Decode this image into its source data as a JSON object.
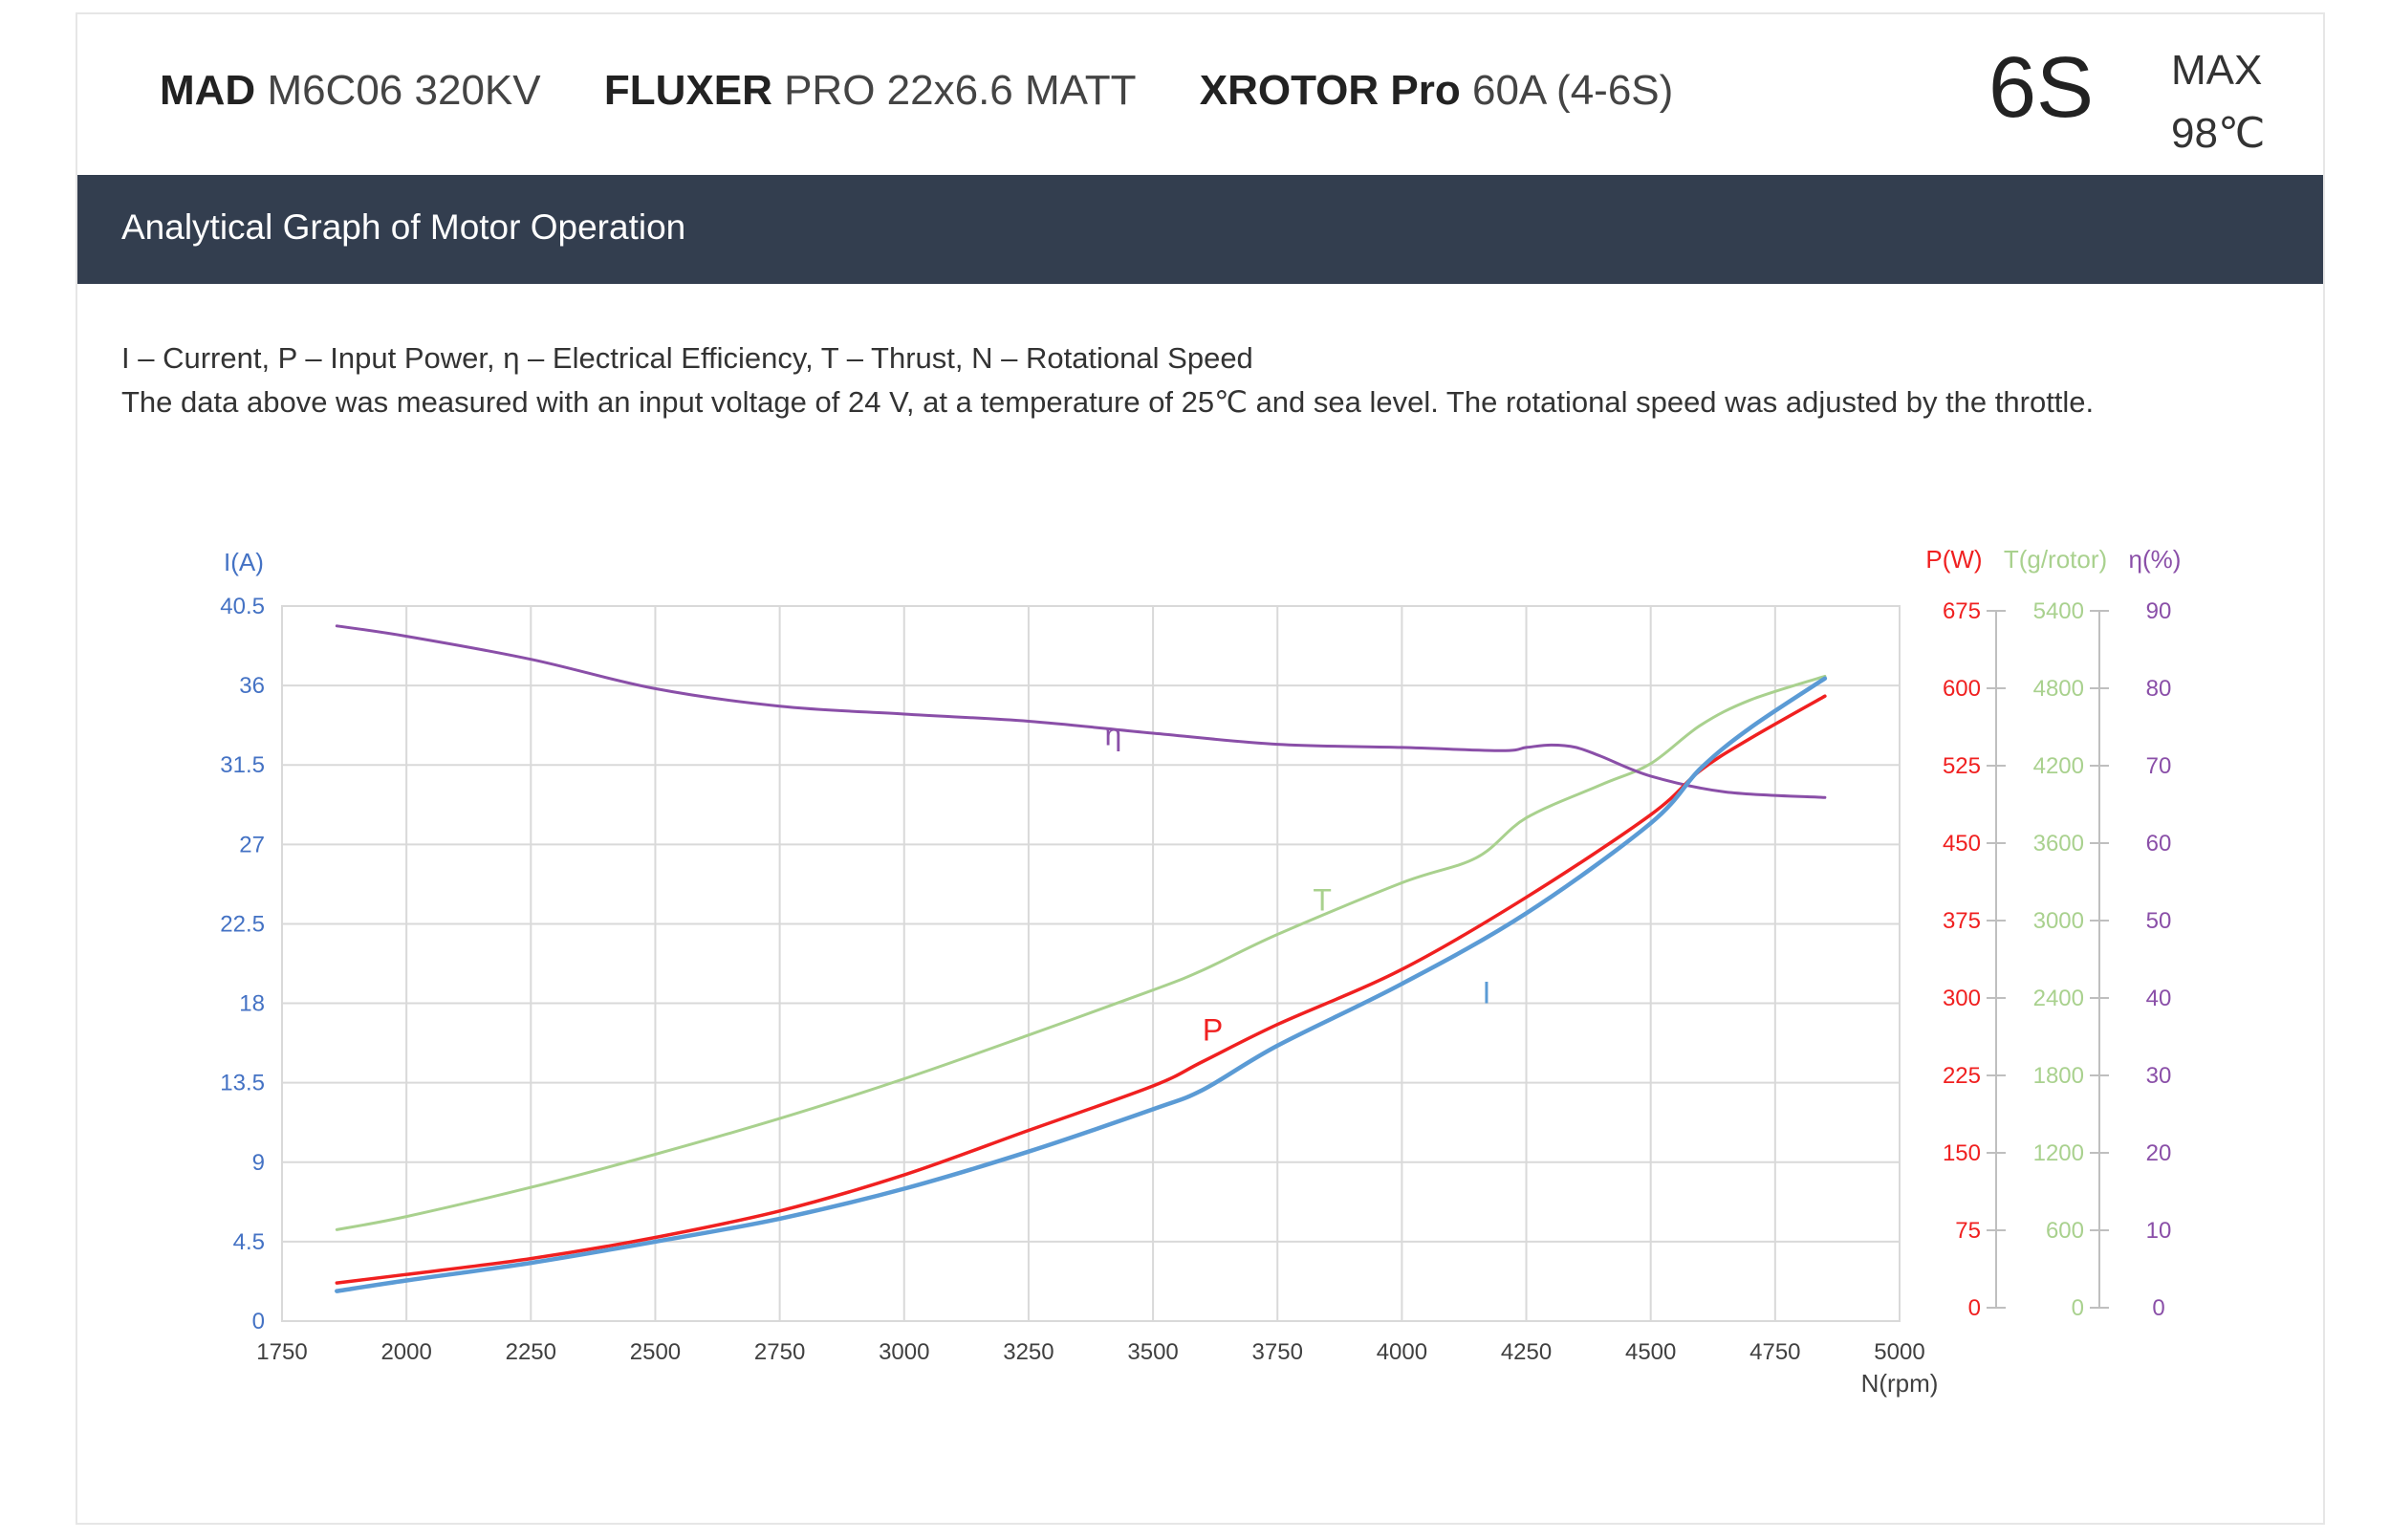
{
  "header": {
    "specs": [
      {
        "brand": "MAD",
        "model": "M6C06 320KV"
      },
      {
        "brand": "FLUXER",
        "model": "PRO 22x6.6 MATT"
      },
      {
        "brand": "XROTOR Pro",
        "model": "60A (4-6S)"
      }
    ],
    "cells": "6S",
    "max_label": "MAX",
    "max_temp": "98℃"
  },
  "banner": {
    "title": "Analytical Graph of Motor Operation"
  },
  "description": {
    "legend_line": "I – Current, P – Input Power, η – Electrical Efficiency, T – Thrust,   N – Rotational Speed",
    "conditions_line": "The data above was measured with an input voltage of 24 V, at a temperature of 25℃ and sea level. The rotational speed was adjusted by the throttle."
  },
  "colors": {
    "current": "#5b9bd5",
    "power": "#f02020",
    "thrust": "#a9d18e",
    "efficiency": "#8a4fa8",
    "axis_left": "#4472c4",
    "grid": "#d9d9d9",
    "banner": "#333e4f"
  },
  "chart_data": {
    "type": "line",
    "xlabel": "N(rpm)",
    "xlim": [
      1750,
      5000
    ],
    "xticks": [
      "1750",
      "2000",
      "2250",
      "2500",
      "2750",
      "3000",
      "3250",
      "3500",
      "3750",
      "4000",
      "4250",
      "4500",
      "4750",
      "5000"
    ],
    "grid": true,
    "axes": {
      "current": {
        "label": "I(A)",
        "range": [
          0,
          40.5
        ],
        "ticks": [
          "0",
          "4.5",
          "9",
          "13.5",
          "18",
          "22.5",
          "27",
          "31.5",
          "36",
          "40.5"
        ]
      },
      "power": {
        "label": "P(W)",
        "range": [
          0,
          675
        ],
        "ticks": [
          "0",
          "75",
          "150",
          "225",
          "300",
          "375",
          "450",
          "525",
          "600",
          "675"
        ]
      },
      "thrust": {
        "label": "T(g/rotor)",
        "range": [
          0,
          5400
        ],
        "ticks": [
          "0",
          "600",
          "1200",
          "1800",
          "2400",
          "3000",
          "3600",
          "4200",
          "4800",
          "5400"
        ]
      },
      "efficiency": {
        "label": "η(%)",
        "range": [
          0,
          90
        ],
        "ticks": [
          "0",
          "10",
          "20",
          "30",
          "40",
          "50",
          "60",
          "70",
          "80",
          "90"
        ]
      }
    },
    "series": [
      {
        "name": "I",
        "axis": "current",
        "x": [
          1860,
          2000,
          2250,
          2500,
          2750,
          3000,
          3250,
          3500,
          3600,
          3750,
          4000,
          4250,
          4500,
          4600,
          4700,
          4850
        ],
        "y": [
          1.7,
          2.3,
          3.3,
          4.5,
          5.8,
          7.5,
          9.6,
          12.0,
          13.1,
          15.6,
          19.1,
          23.1,
          28.2,
          31.3,
          33.6,
          36.4
        ]
      },
      {
        "name": "P",
        "axis": "power",
        "x": [
          1860,
          2000,
          2250,
          2500,
          2750,
          3000,
          3250,
          3500,
          3600,
          3750,
          4000,
          4250,
          4500,
          4600,
          4700,
          4850
        ],
        "y": [
          36,
          44,
          59,
          79,
          104,
          138,
          180,
          222,
          245,
          280,
          332,
          400,
          478,
          520,
          550,
          590
        ]
      },
      {
        "name": "T",
        "axis": "thrust",
        "x": [
          1860,
          2000,
          2250,
          2500,
          2750,
          3000,
          3250,
          3500,
          3600,
          3750,
          4000,
          4150,
          4250,
          4400,
          4500,
          4600,
          4700,
          4850
        ],
        "y": [
          690,
          790,
          1010,
          1260,
          1530,
          1830,
          2160,
          2500,
          2650,
          2920,
          3310,
          3500,
          3800,
          4050,
          4210,
          4500,
          4690,
          4870
        ]
      },
      {
        "name": "η",
        "axis": "efficiency",
        "x": [
          1860,
          2000,
          2250,
          2500,
          2750,
          3000,
          3250,
          3500,
          3750,
          4000,
          4200,
          4250,
          4300,
          4350,
          4400,
          4500,
          4650,
          4850
        ],
        "y": [
          87.5,
          86.2,
          83.3,
          79.6,
          77.4,
          76.4,
          75.5,
          74.0,
          72.6,
          72.2,
          71.8,
          72.2,
          72.5,
          72.2,
          71.1,
          68.6,
          66.6,
          65.9
        ]
      }
    ],
    "annotations": [
      {
        "text": "η",
        "series": "η",
        "x": 3420,
        "y": 72.5
      },
      {
        "text": "T",
        "series": "T",
        "x": 3840,
        "y": 3100
      },
      {
        "text": "P",
        "series": "P",
        "x": 3620,
        "y": 265
      },
      {
        "text": "I",
        "series": "I",
        "x": 4170,
        "y": 18.0
      }
    ]
  }
}
